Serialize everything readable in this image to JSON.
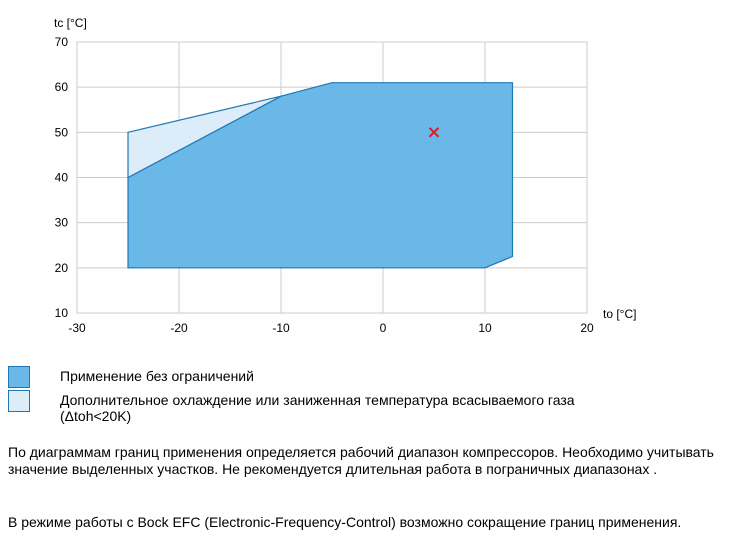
{
  "chart_data": {
    "type": "area",
    "xlabel": "to [°C]",
    "ylabel": "tc [°C]",
    "xlim": [
      -30,
      20
    ],
    "ylim": [
      10,
      70
    ],
    "xticks": [
      -30,
      -20,
      -10,
      0,
      10,
      20
    ],
    "yticks": [
      10,
      20,
      30,
      40,
      50,
      60,
      70
    ],
    "grid": true,
    "series": [
      {
        "name": "Применение без ограничений",
        "color": "#6ab8e8",
        "polygon": [
          [
            -25,
            20
          ],
          [
            10,
            20
          ],
          [
            12.7,
            22.5
          ],
          [
            12.7,
            61
          ],
          [
            -5,
            61
          ],
          [
            -10,
            58
          ],
          [
            -25,
            40
          ]
        ]
      },
      {
        "name": "Дополнительное охлаждение или заниженная температура всасываемого газа (Δtoh<20K)",
        "color": "#dcecf9",
        "polygon": [
          [
            -25,
            40
          ],
          [
            -10,
            58
          ],
          [
            -25,
            50
          ]
        ]
      }
    ],
    "markers": [
      {
        "x": 5,
        "y": 50,
        "symbol": "x",
        "color": "#e31a1c"
      }
    ]
  },
  "legend": [
    {
      "label": "Применение без ограничений",
      "color": "#6ab8e8"
    },
    {
      "label": "Дополнительное охлаждение или заниженная температура всасываемого газа\n(Δtoh<20K)",
      "color": "#dcecf9"
    }
  ],
  "paragraphs": {
    "p1": "По диаграммам границ применения определяется рабочий диапазон компрессоров. Необходимо учитывать значение выделенных участков. Не рекомендуется длительная работа в пограничных диапазонах .",
    "p2": "В режиме работы с Bock EFC (Electronic-Frequency-Control) возможно сокращение границ применения."
  }
}
